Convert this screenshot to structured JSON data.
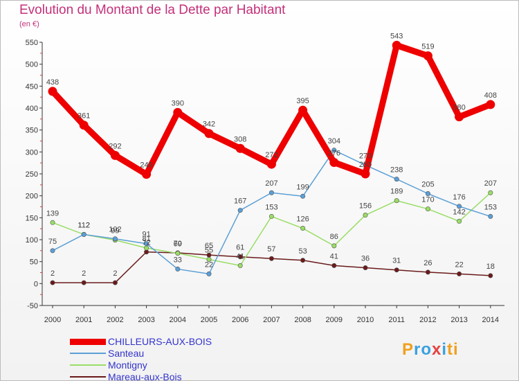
{
  "chart_data": {
    "type": "line",
    "title": "Evolution du Montant de la Dette par Habitant",
    "subtitle": "(en €)",
    "x": [
      "2000",
      "2001",
      "2002",
      "2003",
      "2004",
      "2005",
      "2006",
      "2007",
      "2008",
      "2009",
      "2010",
      "2011",
      "2012",
      "2013",
      "2014"
    ],
    "ylim": [
      -50,
      550
    ],
    "yticks": [
      -50,
      0,
      50,
      100,
      150,
      200,
      250,
      300,
      350,
      400,
      450,
      500,
      550
    ],
    "grid": false,
    "legend": "bottom-left",
    "series": [
      {
        "name": "CHILLEURS-AUX-BOIS",
        "color": "#ee0000",
        "values": [
          438,
          361,
          292,
          249,
          390,
          342,
          308,
          272,
          395,
          276,
          250,
          543,
          519,
          380,
          408
        ]
      },
      {
        "name": "Santeau",
        "color": "#5b9fd6",
        "values": [
          75,
          112,
          102,
          91,
          33,
          22,
          167,
          207,
          199,
          304,
          270,
          238,
          205,
          176,
          153
        ]
      },
      {
        "name": "Montigny",
        "color": "#99dd66",
        "values": [
          139,
          112,
          99,
          81,
          69,
          55,
          41,
          153,
          126,
          86,
          156,
          189,
          170,
          142,
          207
        ]
      },
      {
        "name": "Mareau-aux-Bois",
        "color": "#6b1a1a",
        "values": [
          2,
          2,
          2,
          72,
          70,
          65,
          61,
          57,
          53,
          41,
          36,
          31,
          26,
          22,
          18
        ]
      }
    ]
  },
  "logo": {
    "text": "Proxiti"
  }
}
